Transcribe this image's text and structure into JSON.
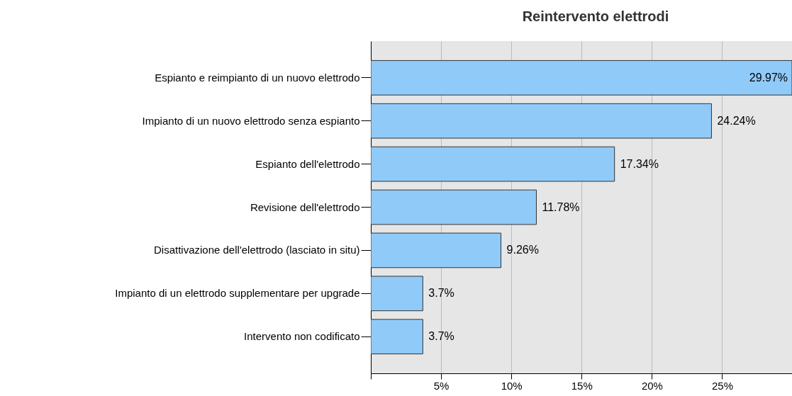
{
  "chart_data": {
    "type": "bar",
    "orientation": "horizontal",
    "title": "Reintervento elettrodi",
    "categories": [
      "Espianto e reimpianto di un nuovo elettrodo",
      "Impianto di un nuovo elettrodo senza espianto",
      "Espianto dell'elettrodo",
      "Revisione dell'elettrodo",
      "Disattivazione dell'elettrodo (lasciato in situ)",
      "Impianto di un elettrodo supplementare per upgrade",
      "Intervento non codificato"
    ],
    "values": [
      29.97,
      24.24,
      17.34,
      11.78,
      9.26,
      3.7,
      3.7
    ],
    "value_labels": [
      "29.97%",
      "24.24%",
      "17.34%",
      "11.78%",
      "9.26%",
      "3.7%",
      "3.7%"
    ],
    "color": "#90caf9",
    "xlim": [
      0,
      29.97
    ],
    "xticks": [
      {
        "value": 0,
        "label": null
      },
      {
        "value": 5,
        "label": "5%"
      },
      {
        "value": 10,
        "label": "10%"
      },
      {
        "value": 15,
        "label": "15%"
      },
      {
        "value": 20,
        "label": "20%"
      },
      {
        "value": 25,
        "label": "25%"
      }
    ],
    "grid": "x"
  }
}
